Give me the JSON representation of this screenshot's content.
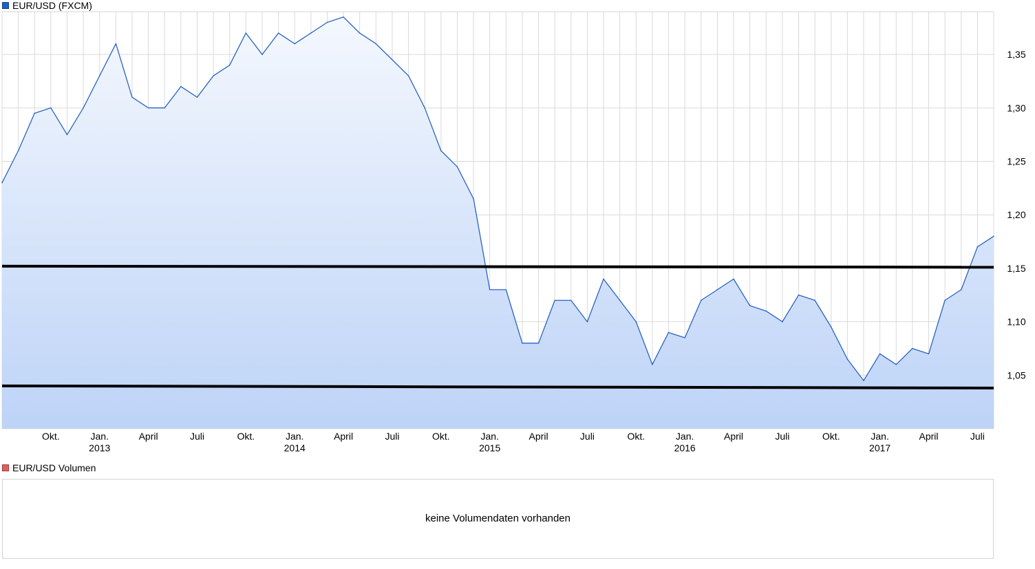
{
  "legend": {
    "price_title": "EUR/USD (FXCM)",
    "price_color": "#1f5fbf",
    "volume_title": "EUR/USD Volumen",
    "volume_color": "#e06060"
  },
  "volume_panel": {
    "message": "keine Volumendaten vorhanden"
  },
  "chart_data": {
    "type": "area",
    "x_range": [
      "2012-07",
      "2017-08"
    ],
    "ylim": [
      1.0,
      1.39
    ],
    "y_ticks": [
      "1,05",
      "1,10",
      "1,15",
      "1,20",
      "1,25",
      "1,30",
      "1,35"
    ],
    "x_ticks": [
      {
        "label": "Okt.",
        "year": "",
        "date": "2012-10"
      },
      {
        "label": "Jan.",
        "year": "2013",
        "date": "2013-01"
      },
      {
        "label": "April",
        "year": "",
        "date": "2013-04"
      },
      {
        "label": "Juli",
        "year": "",
        "date": "2013-07"
      },
      {
        "label": "Okt.",
        "year": "",
        "date": "2013-10"
      },
      {
        "label": "Jan.",
        "year": "2014",
        "date": "2014-01"
      },
      {
        "label": "April",
        "year": "",
        "date": "2014-04"
      },
      {
        "label": "Juli",
        "year": "",
        "date": "2014-07"
      },
      {
        "label": "Okt.",
        "year": "",
        "date": "2014-10"
      },
      {
        "label": "Jan.",
        "year": "2015",
        "date": "2015-01"
      },
      {
        "label": "April",
        "year": "",
        "date": "2015-04"
      },
      {
        "label": "Juli",
        "year": "",
        "date": "2015-07"
      },
      {
        "label": "Okt.",
        "year": "",
        "date": "2015-10"
      },
      {
        "label": "Jan.",
        "year": "2016",
        "date": "2016-01"
      },
      {
        "label": "April",
        "year": "",
        "date": "2016-04"
      },
      {
        "label": "Juli",
        "year": "",
        "date": "2016-07"
      },
      {
        "label": "Okt.",
        "year": "",
        "date": "2016-10"
      },
      {
        "label": "Jan.",
        "year": "2017",
        "date": "2017-01"
      },
      {
        "label": "April",
        "year": "",
        "date": "2017-04"
      },
      {
        "label": "Juli",
        "year": "",
        "date": "2017-07"
      }
    ],
    "series": [
      {
        "color": "#2a62c4",
        "points": [
          [
            "2012-07",
            1.23
          ],
          [
            "2012-08",
            1.26
          ],
          [
            "2012-09",
            1.295
          ],
          [
            "2012-10",
            1.3
          ],
          [
            "2012-11",
            1.275
          ],
          [
            "2012-12",
            1.3
          ],
          [
            "2013-01",
            1.33
          ],
          [
            "2013-02",
            1.36
          ],
          [
            "2013-03",
            1.31
          ],
          [
            "2013-04",
            1.3
          ],
          [
            "2013-05",
            1.3
          ],
          [
            "2013-06",
            1.32
          ],
          [
            "2013-07",
            1.31
          ],
          [
            "2013-08",
            1.33
          ],
          [
            "2013-09",
            1.34
          ],
          [
            "2013-10",
            1.37
          ],
          [
            "2013-11",
            1.35
          ],
          [
            "2013-12",
            1.37
          ],
          [
            "2014-01",
            1.36
          ],
          [
            "2014-02",
            1.37
          ],
          [
            "2014-03",
            1.38
          ],
          [
            "2014-04",
            1.385
          ],
          [
            "2014-05",
            1.37
          ],
          [
            "2014-06",
            1.36
          ],
          [
            "2014-07",
            1.345
          ],
          [
            "2014-08",
            1.33
          ],
          [
            "2014-09",
            1.3
          ],
          [
            "2014-10",
            1.26
          ],
          [
            "2014-11",
            1.245
          ],
          [
            "2014-12",
            1.215
          ],
          [
            "2015-01",
            1.13
          ],
          [
            "2015-02",
            1.13
          ],
          [
            "2015-03",
            1.08
          ],
          [
            "2015-04",
            1.08
          ],
          [
            "2015-05",
            1.12
          ],
          [
            "2015-06",
            1.12
          ],
          [
            "2015-07",
            1.1
          ],
          [
            "2015-08",
            1.14
          ],
          [
            "2015-09",
            1.12
          ],
          [
            "2015-10",
            1.1
          ],
          [
            "2015-11",
            1.06
          ],
          [
            "2015-12",
            1.09
          ],
          [
            "2016-01",
            1.085
          ],
          [
            "2016-02",
            1.12
          ],
          [
            "2016-03",
            1.13
          ],
          [
            "2016-04",
            1.14
          ],
          [
            "2016-05",
            1.115
          ],
          [
            "2016-06",
            1.11
          ],
          [
            "2016-07",
            1.1
          ],
          [
            "2016-08",
            1.125
          ],
          [
            "2016-09",
            1.12
          ],
          [
            "2016-10",
            1.095
          ],
          [
            "2016-11",
            1.065
          ],
          [
            "2016-12",
            1.045
          ],
          [
            "2017-01",
            1.07
          ],
          [
            "2017-02",
            1.06
          ],
          [
            "2017-03",
            1.075
          ],
          [
            "2017-04",
            1.07
          ],
          [
            "2017-05",
            1.12
          ],
          [
            "2017-06",
            1.13
          ],
          [
            "2017-07",
            1.17
          ],
          [
            "2017-08",
            1.18
          ]
        ]
      }
    ],
    "reference_lines": [
      {
        "from": "2012-07",
        "to": "2017-08",
        "y_start": 1.152,
        "y_end": 1.151
      },
      {
        "from": "2012-07",
        "to": "2017-08",
        "y_start": 1.04,
        "y_end": 1.038
      }
    ],
    "grid": true,
    "colors": {
      "area_top": "#f4f8fe",
      "area_bottom": "#bdd3f7",
      "grid": "#d9d9d9",
      "reference_line": "#000000"
    }
  }
}
